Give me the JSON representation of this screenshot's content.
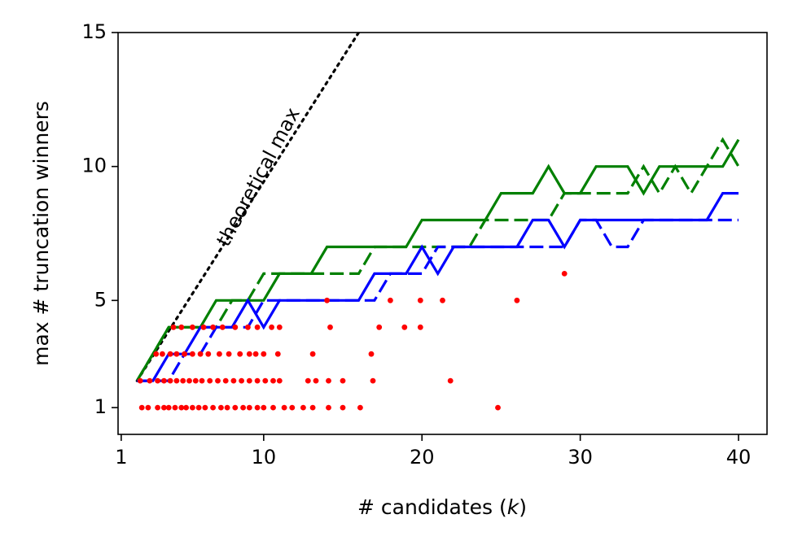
{
  "chart_data": {
    "type": "line",
    "xlabel": "# candidates (",
    "xlabel_var": "k",
    "xlabel_close": ")",
    "ylabel": "max # truncation winners",
    "xlim": [
      0.8,
      41.8
    ],
    "ylim": [
      0,
      15
    ],
    "xticks": [
      1,
      10,
      20,
      30,
      40
    ],
    "yticks": [
      1,
      5,
      10,
      15
    ],
    "annotation": "theoretical max",
    "colors": {
      "green": "#008000",
      "blue": "#0000ff",
      "red": "#ff0000",
      "black": "#000000"
    },
    "series": [
      {
        "style": "dotted",
        "color": "#000000",
        "x": [
          2,
          16
        ],
        "y": [
          2,
          15
        ]
      },
      {
        "style": "solid",
        "color": "#008000",
        "x": [
          2,
          3,
          4,
          5,
          6,
          7,
          8,
          9,
          10,
          11,
          12,
          13,
          14,
          15,
          16,
          17,
          18,
          19,
          20,
          21,
          22,
          23,
          24,
          25,
          26,
          27,
          28,
          29,
          30,
          31,
          32,
          33,
          34,
          35,
          36,
          37,
          38,
          39,
          40
        ],
        "y": [
          2,
          3,
          4,
          4,
          4,
          5,
          5,
          5,
          5,
          6,
          6,
          6,
          7,
          7,
          7,
          7,
          7,
          7,
          8,
          8,
          8,
          8,
          8,
          9,
          9,
          9,
          10,
          9,
          9,
          10,
          10,
          10,
          9,
          10,
          10,
          10,
          10,
          10,
          11
        ]
      },
      {
        "style": "dashed",
        "color": "#008000",
        "x": [
          2,
          3,
          4,
          5,
          6,
          7,
          8,
          9,
          10,
          11,
          12,
          13,
          14,
          15,
          16,
          17,
          18,
          19,
          20,
          21,
          22,
          23,
          24,
          25,
          26,
          27,
          28,
          29,
          30,
          31,
          32,
          33,
          34,
          35,
          36,
          37,
          38,
          39,
          40
        ],
        "y": [
          2,
          3,
          4,
          4,
          4,
          4,
          5,
          5,
          6,
          6,
          6,
          6,
          6,
          6,
          6,
          7,
          7,
          7,
          7,
          7,
          7,
          7,
          8,
          8,
          8,
          8,
          8,
          9,
          9,
          9,
          9,
          9,
          10,
          9,
          10,
          9,
          10,
          11,
          10
        ]
      },
      {
        "style": "solid",
        "color": "#0000ff",
        "x": [
          2,
          3,
          4,
          5,
          6,
          7,
          8,
          9,
          10,
          11,
          12,
          13,
          14,
          15,
          16,
          17,
          18,
          19,
          20,
          21,
          22,
          23,
          24,
          25,
          26,
          27,
          28,
          29,
          30,
          31,
          32,
          33,
          34,
          35,
          36,
          37,
          38,
          39,
          40
        ],
        "y": [
          2,
          2,
          3,
          3,
          4,
          4,
          4,
          5,
          4,
          5,
          5,
          5,
          5,
          5,
          5,
          6,
          6,
          6,
          7,
          6,
          7,
          7,
          7,
          7,
          7,
          8,
          8,
          7,
          8,
          8,
          8,
          8,
          8,
          8,
          8,
          8,
          8,
          9,
          9
        ]
      },
      {
        "style": "dashed",
        "color": "#0000ff",
        "x": [
          2,
          3,
          4,
          5,
          6,
          7,
          8,
          9,
          10,
          11,
          12,
          13,
          14,
          15,
          16,
          17,
          18,
          19,
          20,
          21,
          22,
          23,
          24,
          25,
          26,
          27,
          28,
          29,
          30,
          31,
          32,
          33,
          34,
          35,
          36,
          37,
          38,
          39,
          40
        ],
        "y": [
          2,
          2,
          2,
          3,
          3,
          4,
          4,
          4,
          5,
          5,
          5,
          5,
          5,
          5,
          5,
          5,
          6,
          6,
          6,
          7,
          7,
          7,
          7,
          7,
          7,
          7,
          7,
          7,
          8,
          8,
          7,
          7,
          8,
          8,
          8,
          8,
          8,
          8,
          8
        ]
      }
    ],
    "scatter": {
      "color": "#ff0000",
      "points": [
        [
          2.3,
          1
        ],
        [
          2.7,
          1
        ],
        [
          3.3,
          1
        ],
        [
          3.7,
          1
        ],
        [
          4.0,
          1
        ],
        [
          4.4,
          1
        ],
        [
          4.8,
          1
        ],
        [
          5.1,
          1
        ],
        [
          5.5,
          1
        ],
        [
          5.9,
          1
        ],
        [
          6.3,
          1
        ],
        [
          6.8,
          1
        ],
        [
          7.3,
          1
        ],
        [
          7.7,
          1
        ],
        [
          8.2,
          1
        ],
        [
          8.7,
          1
        ],
        [
          9.1,
          1
        ],
        [
          9.6,
          1
        ],
        [
          10.0,
          1
        ],
        [
          10.6,
          1
        ],
        [
          11.3,
          1
        ],
        [
          11.8,
          1
        ],
        [
          12.5,
          1
        ],
        [
          13.1,
          1
        ],
        [
          14.1,
          1
        ],
        [
          15.0,
          1
        ],
        [
          16.1,
          1
        ],
        [
          24.8,
          1
        ],
        [
          2.2,
          2
        ],
        [
          2.8,
          2
        ],
        [
          3.3,
          2
        ],
        [
          3.7,
          2
        ],
        [
          4.1,
          2
        ],
        [
          4.5,
          2
        ],
        [
          4.9,
          2
        ],
        [
          5.3,
          2
        ],
        [
          5.7,
          2
        ],
        [
          6.1,
          2
        ],
        [
          6.6,
          2
        ],
        [
          7.1,
          2
        ],
        [
          7.6,
          2
        ],
        [
          8.1,
          2
        ],
        [
          8.6,
          2
        ],
        [
          9.1,
          2
        ],
        [
          9.6,
          2
        ],
        [
          10.1,
          2
        ],
        [
          10.6,
          2
        ],
        [
          11.0,
          2
        ],
        [
          12.8,
          2
        ],
        [
          13.3,
          2
        ],
        [
          14.1,
          2
        ],
        [
          15.0,
          2
        ],
        [
          16.9,
          2
        ],
        [
          21.8,
          2
        ],
        [
          3.2,
          3
        ],
        [
          3.6,
          3
        ],
        [
          4.1,
          3
        ],
        [
          4.5,
          3
        ],
        [
          5.0,
          3
        ],
        [
          5.5,
          3
        ],
        [
          6.0,
          3
        ],
        [
          6.5,
          3
        ],
        [
          7.2,
          3
        ],
        [
          7.8,
          3
        ],
        [
          8.5,
          3
        ],
        [
          9.1,
          3
        ],
        [
          9.5,
          3
        ],
        [
          10.0,
          3
        ],
        [
          10.9,
          3
        ],
        [
          13.1,
          3
        ],
        [
          16.8,
          3
        ],
        [
          4.3,
          4
        ],
        [
          4.8,
          4
        ],
        [
          5.5,
          4
        ],
        [
          6.2,
          4
        ],
        [
          6.8,
          4
        ],
        [
          7.4,
          4
        ],
        [
          8.2,
          4
        ],
        [
          9.0,
          4
        ],
        [
          9.6,
          4
        ],
        [
          10.5,
          4
        ],
        [
          11.0,
          4
        ],
        [
          14.2,
          4
        ],
        [
          17.3,
          4
        ],
        [
          18.9,
          4
        ],
        [
          19.9,
          4
        ],
        [
          14.0,
          5
        ],
        [
          18.0,
          5
        ],
        [
          19.9,
          5
        ],
        [
          21.3,
          5
        ],
        [
          26.0,
          5
        ],
        [
          29.0,
          6
        ]
      ]
    }
  }
}
